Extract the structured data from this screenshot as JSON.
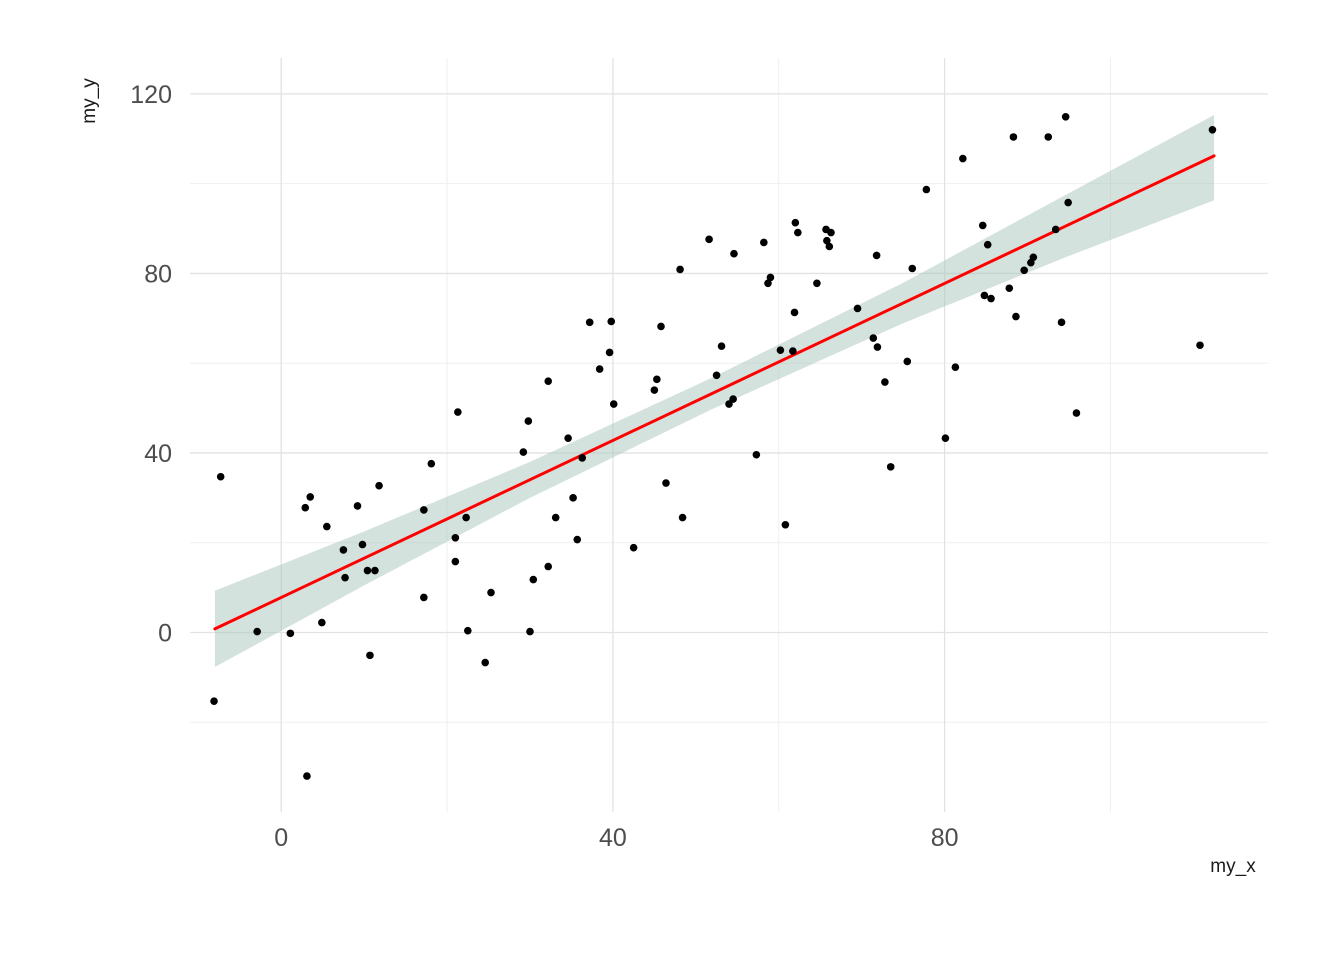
{
  "chart_data": {
    "type": "scatter",
    "title": "",
    "xlabel": "my_x",
    "ylabel": "my_y",
    "xlim": [
      -11,
      119
    ],
    "ylim": [
      -40,
      128
    ],
    "x_ticks": [
      0,
      40,
      80
    ],
    "x_minor_gridlines": [
      20,
      60,
      100
    ],
    "y_ticks": [
      0,
      40,
      80,
      120
    ],
    "y_minor_gridlines": [
      -20,
      20,
      60,
      100
    ],
    "grid": true,
    "legend": false,
    "points": [
      [
        -7.3,
        34.7
      ],
      [
        -8.1,
        -15.3
      ],
      [
        -2.9,
        0.2
      ],
      [
        1.1,
        -0.2
      ],
      [
        3.1,
        -32
      ],
      [
        2.9,
        27.8
      ],
      [
        3.5,
        30.2
      ],
      [
        4.9,
        2.2
      ],
      [
        5.5,
        23.6
      ],
      [
        7.5,
        18.4
      ],
      [
        7.7,
        12.2
      ],
      [
        9.2,
        28.2
      ],
      [
        9.8,
        19.6
      ],
      [
        10.4,
        13.8
      ],
      [
        10.7,
        -5.1
      ],
      [
        11.3,
        13.8
      ],
      [
        11.8,
        32.7
      ],
      [
        17.2,
        7.8
      ],
      [
        17.2,
        27.3
      ],
      [
        18.1,
        37.6
      ],
      [
        21,
        21.1
      ],
      [
        21,
        15.8
      ],
      [
        21.3,
        49.1
      ],
      [
        22.3,
        25.6
      ],
      [
        22.5,
        0.4
      ],
      [
        24.6,
        -6.7
      ],
      [
        25.3,
        8.9
      ],
      [
        29.2,
        40.2
      ],
      [
        29.8,
        47.1
      ],
      [
        30,
        0.2
      ],
      [
        30.4,
        11.8
      ],
      [
        32.2,
        14.7
      ],
      [
        32.2,
        56
      ],
      [
        33.1,
        25.6
      ],
      [
        34.6,
        43.3
      ],
      [
        35.2,
        30
      ],
      [
        35.7,
        20.7
      ],
      [
        36.3,
        38.9
      ],
      [
        37.2,
        69.1
      ],
      [
        38.4,
        58.7
      ],
      [
        39.6,
        62.4
      ],
      [
        39.8,
        69.3
      ],
      [
        40.1,
        50.9
      ],
      [
        42.5,
        18.9
      ],
      [
        45,
        54
      ],
      [
        45.3,
        56.4
      ],
      [
        45.8,
        68.2
      ],
      [
        46.4,
        33.3
      ],
      [
        48.1,
        80.9
      ],
      [
        48.4,
        25.6
      ],
      [
        51.6,
        87.6
      ],
      [
        52.5,
        57.3
      ],
      [
        53.1,
        63.8
      ],
      [
        54,
        50.9
      ],
      [
        54.5,
        52
      ],
      [
        54.6,
        84.4
      ],
      [
        57.3,
        39.6
      ],
      [
        58.2,
        86.9
      ],
      [
        58.7,
        77.8
      ],
      [
        59,
        79.1
      ],
      [
        60.2,
        62.9
      ],
      [
        60.8,
        24
      ],
      [
        61.7,
        62.7
      ],
      [
        61.9,
        71.3
      ],
      [
        62,
        91.3
      ],
      [
        62.3,
        89.1
      ],
      [
        64.6,
        77.8
      ],
      [
        65.7,
        89.8
      ],
      [
        65.8,
        87.3
      ],
      [
        66.1,
        86
      ],
      [
        66.3,
        89.1
      ],
      [
        69.5,
        72.2
      ],
      [
        71.4,
        65.6
      ],
      [
        71.8,
        84
      ],
      [
        71.9,
        63.6
      ],
      [
        72.8,
        55.8
      ],
      [
        73.5,
        36.9
      ],
      [
        75.5,
        60.4
      ],
      [
        76.1,
        81.1
      ],
      [
        77.8,
        98.7
      ],
      [
        80.1,
        43.3
      ],
      [
        81.3,
        59.1
      ],
      [
        82.2,
        105.6
      ],
      [
        84.6,
        90.7
      ],
      [
        84.8,
        75.1
      ],
      [
        85.2,
        86.4
      ],
      [
        85.6,
        74.4
      ],
      [
        87.8,
        76.7
      ],
      [
        88.3,
        110.4
      ],
      [
        88.6,
        70.4
      ],
      [
        89.6,
        80.7
      ],
      [
        90.4,
        82.4
      ],
      [
        90.7,
        83.6
      ],
      [
        92.5,
        110.4
      ],
      [
        93.4,
        89.8
      ],
      [
        94.1,
        69.1
      ],
      [
        94.6,
        114.9
      ],
      [
        94.9,
        95.8
      ],
      [
        95.9,
        48.9
      ],
      [
        110.8,
        64
      ],
      [
        112.3,
        112
      ]
    ],
    "smooth": {
      "type": "linear-regression",
      "line": {
        "x1": -8,
        "y1": 0.8,
        "x2": 112.5,
        "y2": 106.2
      },
      "ribbon": {
        "x": [
          -8,
          10,
          30,
          52,
          75,
          95,
          112.5
        ],
        "lower": [
          -7.7,
          10.5,
          30,
          49.8,
          68.9,
          83.9,
          96.3
        ],
        "upper": [
          9.3,
          22.5,
          38,
          56.8,
          77.9,
          97.9,
          115.3
        ]
      }
    },
    "colors": {
      "point": "#000000",
      "line": "#ff0000",
      "ribbon": "#a8c6bb",
      "ribbon_opacity": 0.5,
      "grid_major": "#e2e2e2",
      "grid_minor": "#efefef",
      "tick_text": "#4d4d4d",
      "axis_title": "#1a1a1a",
      "background": "#ffffff"
    }
  }
}
